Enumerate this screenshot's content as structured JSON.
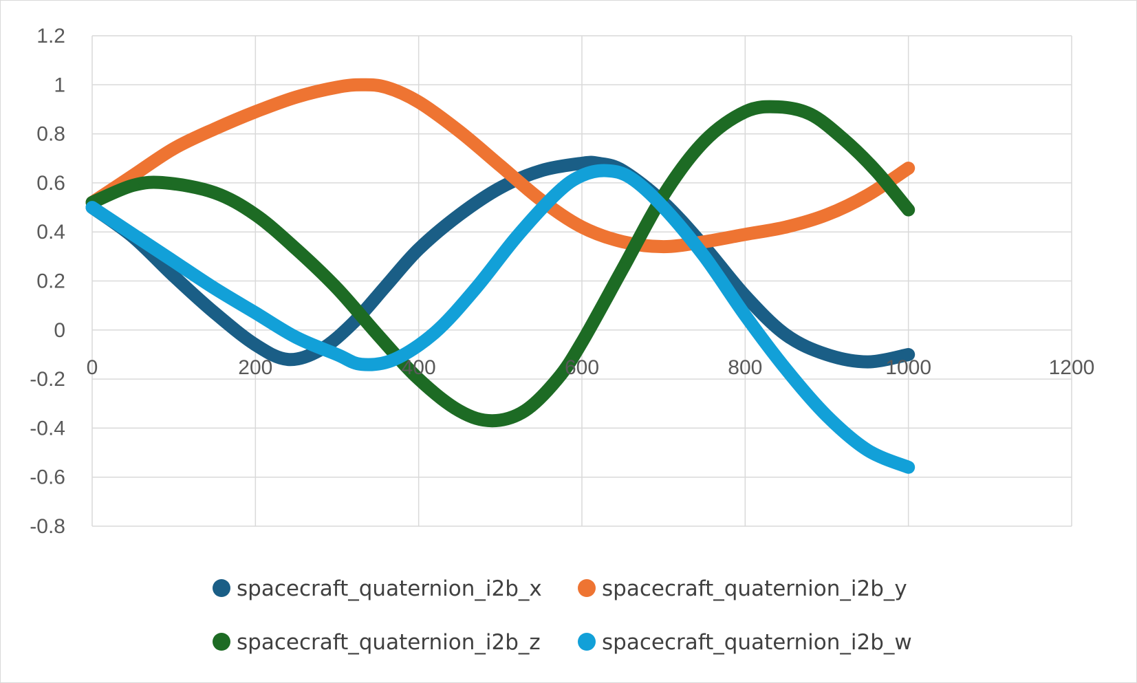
{
  "chart_data": {
    "type": "scatter",
    "title": "",
    "xlabel": "",
    "ylabel": "",
    "xlim": [
      0,
      1200
    ],
    "ylim": [
      -0.8,
      1.2
    ],
    "xticks": [
      0,
      200,
      400,
      600,
      800,
      1000,
      1200
    ],
    "yticks": [
      1.2,
      1,
      0.8,
      0.6,
      0.4,
      0.2,
      0,
      -0.2,
      -0.4,
      -0.6,
      -0.8
    ],
    "xtick_labels": [
      "0",
      "200",
      "400",
      "600",
      "800",
      "1000",
      "1200"
    ],
    "ytick_labels": [
      "1.2",
      "1",
      "0.8",
      "0.6",
      "0.4",
      "0.2",
      "0",
      "-0.2",
      "-0.4",
      "-0.6",
      "-0.8"
    ],
    "grid": true,
    "legend_position": "bottom",
    "series": [
      {
        "name": "spacecraft_quaternion_i2b_x",
        "color": "#1a5e86",
        "x": [
          0,
          50,
          100,
          150,
          200,
          240,
          280,
          320,
          360,
          400,
          450,
          500,
          550,
          600,
          620,
          650,
          700,
          750,
          800,
          850,
          900,
          950,
          1000
        ],
        "y": [
          0.5,
          0.38,
          0.22,
          0.07,
          -0.06,
          -0.12,
          -0.08,
          0.03,
          0.18,
          0.33,
          0.47,
          0.58,
          0.65,
          0.68,
          0.68,
          0.65,
          0.52,
          0.34,
          0.14,
          -0.02,
          -0.1,
          -0.13,
          -0.1
        ]
      },
      {
        "name": "spacecraft_quaternion_i2b_y",
        "color": "#ee7432",
        "x": [
          0,
          50,
          100,
          150,
          200,
          250,
          300,
          330,
          360,
          400,
          450,
          500,
          550,
          600,
          650,
          700,
          750,
          800,
          850,
          900,
          950,
          1000
        ],
        "y": [
          0.52,
          0.63,
          0.74,
          0.82,
          0.89,
          0.95,
          0.99,
          1.0,
          0.99,
          0.93,
          0.81,
          0.67,
          0.53,
          0.42,
          0.36,
          0.34,
          0.36,
          0.39,
          0.42,
          0.47,
          0.55,
          0.66
        ]
      },
      {
        "name": "spacecraft_quaternion_i2b_z",
        "color": "#1d6b24",
        "x": [
          0,
          50,
          90,
          150,
          200,
          250,
          300,
          350,
          400,
          450,
          490,
          530,
          570,
          600,
          650,
          700,
          750,
          800,
          840,
          880,
          920,
          960,
          1000
        ],
        "y": [
          0.52,
          0.59,
          0.6,
          0.56,
          0.47,
          0.33,
          0.17,
          -0.02,
          -0.2,
          -0.33,
          -0.37,
          -0.33,
          -0.2,
          -0.05,
          0.25,
          0.55,
          0.77,
          0.89,
          0.91,
          0.88,
          0.78,
          0.65,
          0.49
        ]
      },
      {
        "name": "spacecraft_quaternion_i2b_w",
        "color": "#12a0d8",
        "x": [
          0,
          50,
          100,
          150,
          200,
          250,
          300,
          330,
          370,
          420,
          470,
          520,
          570,
          600,
          630,
          660,
          700,
          750,
          800,
          850,
          900,
          950,
          1000
        ],
        "y": [
          0.5,
          0.39,
          0.28,
          0.17,
          0.07,
          -0.03,
          -0.1,
          -0.14,
          -0.12,
          -0.01,
          0.17,
          0.38,
          0.56,
          0.63,
          0.65,
          0.62,
          0.5,
          0.3,
          0.06,
          -0.16,
          -0.35,
          -0.49,
          -0.56
        ]
      }
    ]
  }
}
